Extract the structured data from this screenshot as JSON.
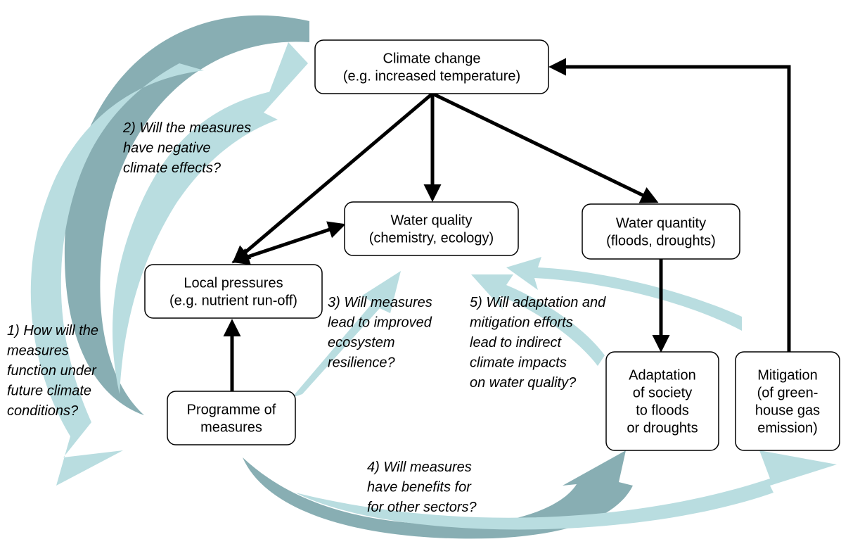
{
  "nodes": [
    {
      "lines": [
        "Climate change",
        "(e.g. increased temperature)"
      ]
    },
    {
      "lines": [
        "Water quality",
        "(chemistry, ecology)"
      ]
    },
    {
      "lines": [
        "Water quantity",
        "(floods, droughts)"
      ]
    },
    {
      "lines": [
        "Local pressures",
        "(e.g. nutrient run-off)"
      ]
    },
    {
      "lines": [
        "Programme of",
        "measures"
      ]
    },
    {
      "lines": [
        "Adaptation",
        "of society",
        "to floods",
        "or droughts"
      ]
    },
    {
      "lines": [
        "Mitigation",
        "(of green-",
        "house gas",
        "emission)"
      ]
    }
  ],
  "questions": [
    {
      "lines": [
        "1) How will the",
        "measures",
        "function under",
        "future climate",
        "conditions?"
      ]
    },
    {
      "lines": [
        "2) Will the measures",
        "have negative",
        "climate effects?"
      ]
    },
    {
      "lines": [
        "3) Will measures",
        "lead to improved",
        "ecosystem",
        "resilience?"
      ]
    },
    {
      "lines": [
        "4) Will measures",
        "have benefits for",
        "for other sectors?"
      ]
    },
    {
      "lines": [
        "5) Will adaptation and",
        "mitigation efforts",
        "lead to indirect",
        "climate impacts",
        "on water quality?"
      ]
    }
  ]
}
